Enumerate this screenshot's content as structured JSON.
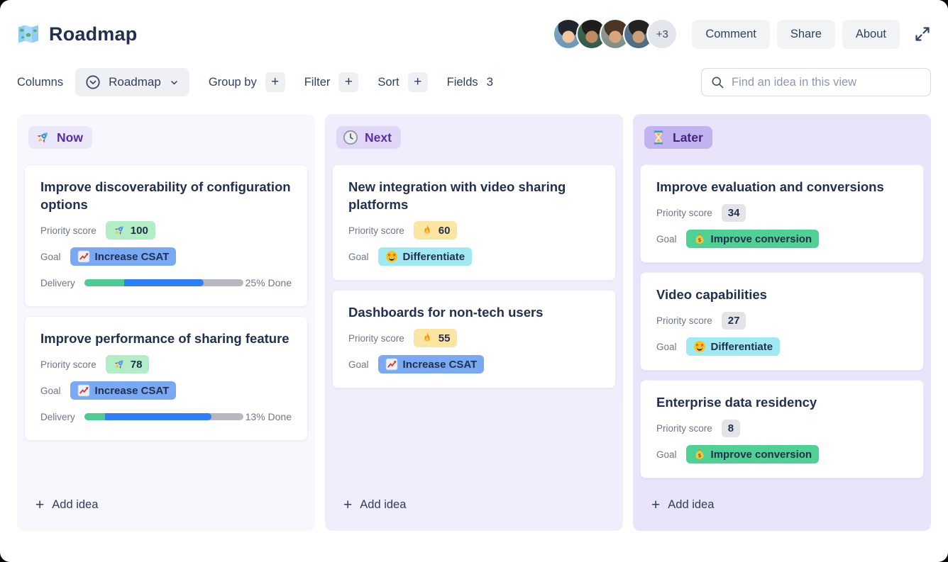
{
  "header": {
    "title": "Roadmap",
    "title_icon": "map-icon",
    "avatars": {
      "visible_count": 4,
      "overflow_label": "+3"
    },
    "comment_label": "Comment",
    "share_label": "Share",
    "about_label": "About",
    "expand_icon": "expand-icon"
  },
  "toolbar": {
    "columns_label": "Columns",
    "view_selector": {
      "value": "Roadmap",
      "icon": "circle-chevron-down-icon",
      "caret_icon": "chevron-down-icon"
    },
    "group_by_label": "Group by",
    "filter_label": "Filter",
    "sort_label": "Sort",
    "fields_label": "Fields",
    "fields_count": "3",
    "plus": "+",
    "search": {
      "placeholder": "Find an idea in this view",
      "icon": "search-icon"
    }
  },
  "labels": {
    "priority_score": "Priority score",
    "goal": "Goal",
    "delivery": "Delivery",
    "add_idea": "Add idea",
    "plus": "+"
  },
  "columns": [
    {
      "name": "Now",
      "icon": "rocket-icon",
      "cards": [
        {
          "title": "Improve discoverability of configuration options",
          "priority": {
            "value": "100",
            "icon": "rocket-icon",
            "badge_color": "#b3edc6"
          },
          "goal": {
            "value": "Increase CSAT",
            "icon": "chart-increasing-icon",
            "badge_color": "#7aa9f4"
          },
          "delivery": {
            "done_label": "25% Done",
            "done_pct": 25,
            "in_progress_pct": 50,
            "not_started_pct": 25
          }
        },
        {
          "title": "Improve performance of sharing feature",
          "priority": {
            "value": "78",
            "icon": "rocket-icon",
            "badge_color": "#b3edc6"
          },
          "goal": {
            "value": "Increase CSAT",
            "icon": "chart-increasing-icon",
            "badge_color": "#7aa9f4"
          },
          "delivery": {
            "done_label": "13% Done",
            "done_pct": 13,
            "in_progress_pct": 67,
            "not_started_pct": 20
          }
        }
      ]
    },
    {
      "name": "Next",
      "icon": "clock-icon",
      "cards": [
        {
          "title": "New integration with video sharing platforms",
          "priority": {
            "value": "60",
            "icon": "fire-icon",
            "badge_color": "#fbe5a0"
          },
          "goal": {
            "value": "Differentiate",
            "icon": "star-struck-icon",
            "badge_color": "#a0e9f3"
          }
        },
        {
          "title": "Dashboards for non-tech users",
          "priority": {
            "value": "55",
            "icon": "fire-icon",
            "badge_color": "#fbe5a0"
          },
          "goal": {
            "value": "Increase CSAT",
            "icon": "chart-increasing-icon",
            "badge_color": "#7aa9f4"
          }
        }
      ]
    },
    {
      "name": "Later",
      "icon": "hourglass-icon",
      "cards": [
        {
          "title": "Improve evaluation and conversions",
          "priority": {
            "value": "34",
            "badge_color": "#e4e4e8"
          },
          "goal": {
            "value": "Improve conversion",
            "icon": "money-bag-icon",
            "badge_color": "#4fd194"
          }
        },
        {
          "title": "Video capabilities",
          "priority": {
            "value": "27",
            "badge_color": "#e4e4e8"
          },
          "goal": {
            "value": "Differentiate",
            "icon": "star-struck-icon",
            "badge_color": "#a0e9f3"
          }
        },
        {
          "title": "Enterprise data residency",
          "priority": {
            "value": "8",
            "badge_color": "#e4e4e8"
          },
          "goal": {
            "value": "Improve conversion",
            "icon": "money-bag-icon",
            "badge_color": "#4fd194"
          }
        }
      ]
    }
  ],
  "colors": {
    "accent_purple": "#5a2ca5",
    "column_now_bg": "#f8f7fe",
    "column_next_bg": "#f0edfc",
    "column_later_bg": "#e9e4fa",
    "badge_now_bg": "#ebe7fa",
    "badge_next_bg": "#e0d7f7",
    "badge_later_bg": "#c3b2f0",
    "progress_done": "#4ecb93",
    "progress_in_progress": "#2e7ef7",
    "progress_track": "#b5b8be",
    "card_title_text": "#22304f",
    "muted_text": "#6e7687"
  }
}
